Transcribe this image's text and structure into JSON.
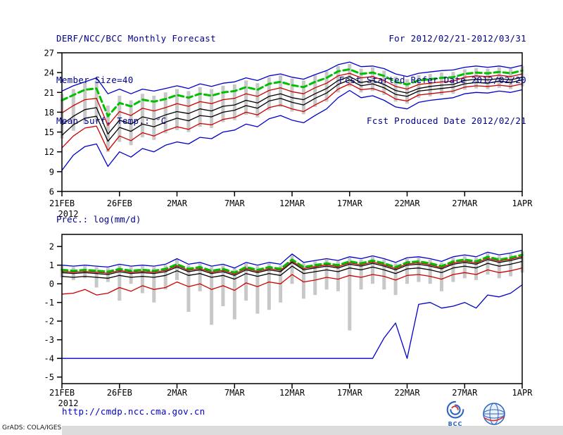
{
  "header": {
    "left": [
      "DERF/NCC/BCC Monthly Forecast",
      "Member Size=40"
    ],
    "right": [
      "For 2012/02/21-2012/03/31",
      "Fcst Started Refer Date 2012/02/20",
      "Fcst Produced Date 2012/02/21"
    ]
  },
  "footer": {
    "url": "http://cmdp.ncc.cma.gov.cn",
    "stamp": "GrADS: COLA/IGES",
    "bcc_label": "BCC"
  },
  "colors": {
    "header_text": "#00008b",
    "url_text": "#0000cd",
    "axis_text": "#000000",
    "ensemble_mean_green": "#00c000",
    "minmax_blue": "#0000cc",
    "std_red": "#cc0000",
    "median_black": "#000000",
    "spread_bar_gray": "#c8c8c8"
  },
  "chart_data": [
    {
      "type": "line",
      "title": "Mean Surf. Temp.: °C",
      "xlabel": "",
      "ylabel": "°C",
      "ylim": [
        6,
        27
      ],
      "yticks": [
        6,
        9,
        12,
        15,
        18,
        21,
        24,
        27
      ],
      "n": 41,
      "x_tick_indices": [
        0,
        5,
        10,
        15,
        20,
        25,
        30,
        35,
        40
      ],
      "x_labels": [
        "21FEB",
        "26FEB",
        "2MAR",
        "7MAR",
        "12MAR",
        "17MAR",
        "22MAR",
        "27MAR",
        "1APR"
      ],
      "year_label": "2012",
      "grid": false,
      "legend": "none",
      "bar_color": "#c8c8c8",
      "bars": [
        [
          14.0,
          20.8
        ],
        [
          15.2,
          21.5
        ],
        [
          16.2,
          22.5
        ],
        [
          16.5,
          22.8
        ],
        [
          12.0,
          19.0
        ],
        [
          13.5,
          20.5
        ],
        [
          13.0,
          19.8
        ],
        [
          14.2,
          20.8
        ],
        [
          13.8,
          20.5
        ],
        [
          14.8,
          21.0
        ],
        [
          15.3,
          21.5
        ],
        [
          15.0,
          21.2
        ],
        [
          15.8,
          21.8
        ],
        [
          15.6,
          21.5
        ],
        [
          16.5,
          22.0
        ],
        [
          16.8,
          22.2
        ],
        [
          17.6,
          22.8
        ],
        [
          17.2,
          22.4
        ],
        [
          18.3,
          23.3
        ],
        [
          18.8,
          23.6
        ],
        [
          18.1,
          23.1
        ],
        [
          17.7,
          22.8
        ],
        [
          18.8,
          23.6
        ],
        [
          19.6,
          24.2
        ],
        [
          21.0,
          25.0
        ],
        [
          21.9,
          25.3
        ],
        [
          21.0,
          24.6
        ],
        [
          21.2,
          24.8
        ],
        [
          20.6,
          24.3
        ],
        [
          19.6,
          23.4
        ],
        [
          19.3,
          23.0
        ],
        [
          20.2,
          23.6
        ],
        [
          20.4,
          23.8
        ],
        [
          20.6,
          24.0
        ],
        [
          20.8,
          24.1
        ],
        [
          21.4,
          24.5
        ],
        [
          21.6,
          24.7
        ],
        [
          21.5,
          24.6
        ],
        [
          21.7,
          24.8
        ],
        [
          21.5,
          24.6
        ],
        [
          21.9,
          25.0
        ]
      ],
      "series": [
        {
          "name": "ensemble-max",
          "color": "#0000cc",
          "width": 1.3,
          "dash": null,
          "values": [
            21.2,
            22.0,
            22.6,
            23.2,
            20.8,
            21.5,
            20.8,
            21.5,
            21.2,
            21.6,
            22.0,
            21.6,
            22.3,
            21.9,
            22.4,
            22.6,
            23.2,
            22.8,
            23.5,
            23.8,
            23.3,
            23.0,
            23.7,
            24.3,
            25.2,
            25.6,
            24.9,
            25.0,
            24.6,
            23.8,
            23.4,
            23.9,
            24.1,
            24.3,
            24.4,
            24.8,
            25.0,
            24.8,
            25.0,
            24.7,
            25.1
          ]
        },
        {
          "name": "ensemble-min",
          "color": "#0000cc",
          "width": 1.3,
          "dash": null,
          "values": [
            9.2,
            11.5,
            12.8,
            13.2,
            9.8,
            12.0,
            11.2,
            12.5,
            12.0,
            13.0,
            13.5,
            13.2,
            14.2,
            14.0,
            15.0,
            15.3,
            16.2,
            15.8,
            17.0,
            17.5,
            16.8,
            16.4,
            17.5,
            18.5,
            20.2,
            21.3,
            20.2,
            20.5,
            19.8,
            18.8,
            18.5,
            19.5,
            19.8,
            20.0,
            20.2,
            20.8,
            21.0,
            20.9,
            21.2,
            21.0,
            21.4
          ]
        },
        {
          "name": "mean-plus-std",
          "color": "#cc0000",
          "width": 1.3,
          "dash": null,
          "values": [
            17.9,
            19.0,
            19.9,
            20.1,
            16.0,
            18.1,
            17.5,
            18.6,
            18.2,
            18.7,
            19.3,
            18.9,
            19.6,
            19.3,
            19.9,
            20.1,
            20.8,
            20.4,
            21.3,
            21.7,
            21.1,
            20.8,
            21.7,
            22.4,
            23.5,
            23.9,
            23.2,
            23.4,
            22.8,
            21.9,
            21.5,
            22.2,
            22.4,
            22.6,
            22.7,
            23.3,
            23.5,
            23.4,
            23.6,
            23.4,
            23.8
          ]
        },
        {
          "name": "mean-minus-std",
          "color": "#cc0000",
          "width": 1.3,
          "dash": null,
          "values": [
            12.6,
            14.4,
            15.6,
            15.9,
            12.2,
            14.4,
            13.7,
            14.9,
            14.4,
            15.2,
            15.8,
            15.4,
            16.3,
            16.1,
            16.9,
            17.2,
            18.0,
            17.6,
            18.7,
            19.1,
            18.5,
            18.1,
            19.1,
            20.0,
            21.5,
            22.3,
            21.4,
            21.6,
            21.0,
            20.0,
            19.7,
            20.6,
            20.8,
            21.0,
            21.2,
            21.8,
            22.0,
            21.9,
            22.1,
            21.9,
            22.3
          ]
        },
        {
          "name": "upper-median",
          "color": "#000000",
          "width": 1.3,
          "dash": null,
          "values": [
            16.1,
            17.4,
            18.4,
            18.7,
            14.7,
            16.8,
            16.2,
            17.3,
            16.9,
            17.6,
            18.1,
            17.8,
            18.5,
            18.2,
            18.9,
            19.1,
            19.8,
            19.4,
            20.4,
            20.8,
            20.2,
            19.9,
            20.8,
            21.6,
            22.8,
            23.4,
            22.5,
            22.8,
            22.2,
            21.3,
            20.9,
            21.6,
            21.9,
            22.1,
            22.2,
            22.8,
            23.0,
            22.9,
            23.1,
            22.9,
            23.3
          ]
        },
        {
          "name": "lower-median",
          "color": "#000000",
          "width": 1.3,
          "dash": null,
          "values": [
            14.5,
            16.1,
            17.1,
            17.4,
            13.6,
            15.7,
            15.1,
            16.2,
            15.8,
            16.5,
            17.1,
            16.7,
            17.5,
            17.3,
            18.0,
            18.3,
            19.0,
            18.6,
            19.7,
            20.1,
            19.5,
            19.1,
            20.1,
            20.9,
            22.2,
            22.9,
            22.0,
            22.3,
            21.7,
            20.7,
            20.4,
            21.2,
            21.4,
            21.6,
            21.8,
            22.3,
            22.5,
            22.4,
            22.7,
            22.5,
            22.9
          ]
        },
        {
          "name": "ensemble-mean",
          "color": "#00c000",
          "width": 3,
          "dash": "8,5",
          "values": [
            19.8,
            20.6,
            21.4,
            21.6,
            17.4,
            19.4,
            18.9,
            19.9,
            19.6,
            20.0,
            20.6,
            20.2,
            20.8,
            20.5,
            21.0,
            21.2,
            21.8,
            21.4,
            22.3,
            22.6,
            22.1,
            21.8,
            22.6,
            23.2,
            24.2,
            24.5,
            23.8,
            24.0,
            23.5,
            22.6,
            22.2,
            22.8,
            23.0,
            23.2,
            23.3,
            23.8,
            24.0,
            23.9,
            24.1,
            23.9,
            24.3
          ]
        }
      ]
    },
    {
      "type": "line",
      "title": "Prec.: log(mm/d)",
      "xlabel": "",
      "ylabel": "log(mm/d)",
      "ylim": [
        -5.35,
        2.65
      ],
      "yticks": [
        -5,
        -4,
        -3,
        -2,
        -1,
        0,
        1,
        2
      ],
      "n": 41,
      "x_tick_indices": [
        0,
        5,
        10,
        15,
        20,
        25,
        30,
        35,
        40
      ],
      "x_labels": [
        "21FEB",
        "26FEB",
        "2MAR",
        "7MAR",
        "12MAR",
        "17MAR",
        "22MAR",
        "27MAR",
        "1APR"
      ],
      "year_label": "2012",
      "grid": false,
      "legend": "none",
      "bar_color": "#c8c8c8",
      "bars": [
        [
          0.35,
          0.95
        ],
        [
          0.2,
          0.9
        ],
        [
          0.3,
          0.95
        ],
        [
          -0.2,
          0.9
        ],
        [
          0.1,
          0.85
        ],
        [
          -0.9,
          1.0
        ],
        [
          0.0,
          0.9
        ],
        [
          -0.5,
          0.95
        ],
        [
          -1.0,
          0.9
        ],
        [
          -0.3,
          1.0
        ],
        [
          0.2,
          1.3
        ],
        [
          -1.5,
          1.0
        ],
        [
          -0.4,
          1.1
        ],
        [
          -2.2,
          0.9
        ],
        [
          -1.2,
          1.0
        ],
        [
          -1.9,
          0.85
        ],
        [
          -0.9,
          1.1
        ],
        [
          -1.6,
          0.95
        ],
        [
          -1.4,
          1.1
        ],
        [
          -1.0,
          1.0
        ],
        [
          0.0,
          1.55
        ],
        [
          -0.8,
          1.1
        ],
        [
          -0.6,
          1.2
        ],
        [
          -0.3,
          1.3
        ],
        [
          -0.4,
          1.2
        ],
        [
          -2.5,
          1.4
        ],
        [
          -0.3,
          1.3
        ],
        [
          0.0,
          1.45
        ],
        [
          -0.3,
          1.3
        ],
        [
          -0.6,
          1.1
        ],
        [
          0.0,
          1.35
        ],
        [
          0.1,
          1.4
        ],
        [
          0.0,
          1.3
        ],
        [
          -0.4,
          1.15
        ],
        [
          0.1,
          1.4
        ],
        [
          0.3,
          1.5
        ],
        [
          0.2,
          1.4
        ],
        [
          0.5,
          1.65
        ],
        [
          0.3,
          1.5
        ],
        [
          0.4,
          1.6
        ],
        [
          0.6,
          1.75
        ]
      ],
      "series": [
        {
          "name": "ensemble-max",
          "color": "#0000cc",
          "width": 1.3,
          "dash": null,
          "values": [
            1.0,
            0.95,
            1.0,
            0.95,
            0.9,
            1.05,
            0.95,
            1.0,
            0.95,
            1.05,
            1.35,
            1.05,
            1.15,
            0.95,
            1.05,
            0.85,
            1.15,
            1.0,
            1.15,
            1.05,
            1.6,
            1.15,
            1.25,
            1.35,
            1.25,
            1.45,
            1.35,
            1.5,
            1.35,
            1.15,
            1.4,
            1.45,
            1.35,
            1.2,
            1.45,
            1.55,
            1.45,
            1.7,
            1.55,
            1.65,
            1.8
          ]
        },
        {
          "name": "ensemble-min",
          "color": "#0000cc",
          "width": 1.3,
          "dash": null,
          "values": [
            -4,
            -4,
            -4,
            -4,
            -4,
            -4,
            -4,
            -4,
            -4,
            -4,
            -4,
            -4,
            -4,
            -4,
            -4,
            -4,
            -4,
            -4,
            -4,
            -4,
            -4,
            -4,
            -4,
            -4,
            -4,
            -4,
            -4,
            -4,
            -2.9,
            -2.1,
            -4,
            -1.1,
            -1.0,
            -1.3,
            -1.2,
            -1.0,
            -1.3,
            -0.6,
            -0.7,
            -0.5,
            -0.05
          ]
        },
        {
          "name": "mean-plus-std",
          "color": "#cc0000",
          "width": 1.3,
          "dash": null,
          "values": [
            0.67,
            0.62,
            0.67,
            0.62,
            0.57,
            0.72,
            0.62,
            0.67,
            0.62,
            0.72,
            0.97,
            0.72,
            0.82,
            0.62,
            0.72,
            0.52,
            0.82,
            0.67,
            0.82,
            0.72,
            1.22,
            0.82,
            0.92,
            1.02,
            0.92,
            1.12,
            1.02,
            1.17,
            1.02,
            0.82,
            1.07,
            1.12,
            1.02,
            0.87,
            1.12,
            1.22,
            1.12,
            1.37,
            1.22,
            1.32,
            1.47
          ]
        },
        {
          "name": "mean-minus-std",
          "color": "#cc0000",
          "width": 1.3,
          "dash": null,
          "values": [
            -0.55,
            -0.5,
            -0.3,
            -0.6,
            -0.5,
            -0.2,
            -0.4,
            -0.1,
            -0.3,
            -0.2,
            0.1,
            -0.15,
            0.0,
            -0.3,
            -0.1,
            -0.35,
            0.05,
            -0.15,
            0.1,
            0.0,
            0.5,
            0.1,
            0.2,
            0.35,
            0.25,
            0.45,
            0.35,
            0.5,
            0.4,
            0.2,
            0.45,
            0.5,
            0.4,
            0.25,
            0.5,
            0.6,
            0.5,
            0.75,
            0.6,
            0.7,
            0.85
          ]
        },
        {
          "name": "upper-median",
          "color": "#000000",
          "width": 1.3,
          "dash": null,
          "values": [
            0.6,
            0.55,
            0.6,
            0.55,
            0.5,
            0.65,
            0.55,
            0.6,
            0.55,
            0.65,
            0.9,
            0.65,
            0.75,
            0.55,
            0.65,
            0.45,
            0.75,
            0.6,
            0.75,
            0.65,
            1.15,
            0.75,
            0.85,
            0.95,
            0.85,
            1.05,
            0.95,
            1.1,
            0.95,
            0.75,
            1.0,
            1.05,
            0.95,
            0.8,
            1.05,
            1.15,
            1.05,
            1.3,
            1.15,
            1.25,
            1.4
          ]
        },
        {
          "name": "lower-median",
          "color": "#000000",
          "width": 1.3,
          "dash": null,
          "values": [
            0.4,
            0.35,
            0.4,
            0.35,
            0.3,
            0.45,
            0.35,
            0.4,
            0.35,
            0.45,
            0.7,
            0.45,
            0.55,
            0.35,
            0.45,
            0.25,
            0.55,
            0.4,
            0.55,
            0.45,
            0.95,
            0.55,
            0.65,
            0.75,
            0.65,
            0.85,
            0.75,
            0.9,
            0.75,
            0.55,
            0.8,
            0.85,
            0.75,
            0.6,
            0.85,
            0.95,
            0.85,
            1.1,
            0.95,
            1.05,
            1.2
          ]
        },
        {
          "name": "ensemble-mean",
          "color": "#00c000",
          "width": 3,
          "dash": "8,5",
          "values": [
            0.75,
            0.7,
            0.75,
            0.7,
            0.65,
            0.8,
            0.7,
            0.75,
            0.7,
            0.8,
            1.05,
            0.8,
            0.9,
            0.7,
            0.8,
            0.6,
            0.9,
            0.75,
            0.9,
            0.8,
            1.3,
            0.9,
            1.0,
            1.1,
            1.0,
            1.2,
            1.1,
            1.25,
            1.1,
            0.9,
            1.15,
            1.2,
            1.1,
            0.95,
            1.2,
            1.3,
            1.2,
            1.45,
            1.3,
            1.4,
            1.55
          ]
        }
      ]
    }
  ]
}
